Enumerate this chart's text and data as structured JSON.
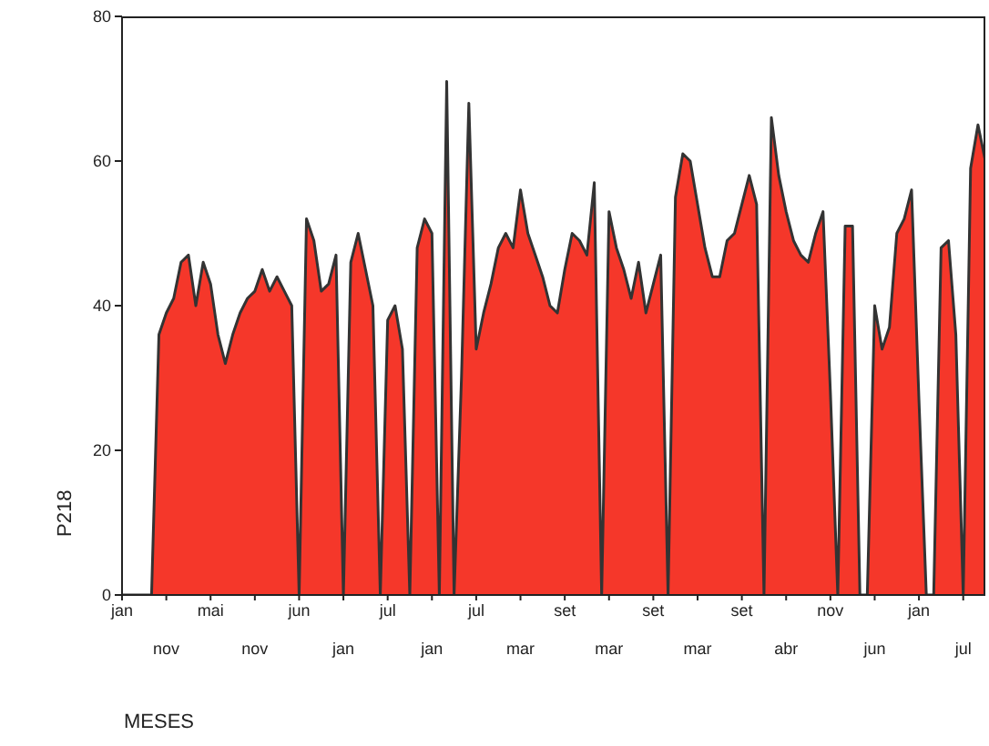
{
  "chart_data": {
    "type": "area",
    "xlabel": "MESES",
    "ylabel": "P218",
    "categories": [
      "jan",
      null,
      null,
      null,
      null,
      null,
      "nov",
      null,
      null,
      null,
      null,
      null,
      "mai",
      null,
      null,
      null,
      null,
      null,
      "nov",
      null,
      null,
      null,
      null,
      null,
      "jun",
      null,
      null,
      null,
      null,
      null,
      "jan",
      null,
      null,
      null,
      null,
      null,
      "jul",
      null,
      null,
      null,
      null,
      null,
      "jan",
      null,
      null,
      null,
      null,
      null,
      "jul",
      null,
      null,
      null,
      null,
      null,
      "mar",
      null,
      null,
      null,
      null,
      null,
      "set",
      null,
      null,
      null,
      null,
      null,
      "mar",
      null,
      null,
      null,
      null,
      null,
      "set",
      null,
      null,
      null,
      null,
      null,
      "mar",
      null,
      null,
      null,
      null,
      null,
      "set",
      null,
      null,
      null,
      null,
      null,
      "abr",
      null,
      null,
      null,
      null,
      null,
      "nov",
      null,
      null,
      null,
      null,
      null,
      "jun",
      null,
      null,
      null,
      null,
      null,
      "jan",
      null,
      null,
      null,
      null,
      null,
      "jul",
      null,
      null,
      null
    ],
    "ylim": [
      0,
      80
    ],
    "yticks": [
      0,
      20,
      40,
      60,
      80
    ],
    "grid": false,
    "legend": false,
    "series": [
      {
        "color": "#f5372a",
        "values": [
          0,
          0,
          0,
          0,
          0,
          36,
          39,
          41,
          46,
          47,
          40,
          46,
          43,
          36,
          32,
          36,
          39,
          41,
          42,
          45,
          42,
          44,
          42,
          40,
          0,
          52,
          49,
          42,
          43,
          47,
          0,
          46,
          50,
          45,
          40,
          0,
          38,
          40,
          34,
          0,
          48,
          52,
          50,
          0,
          71,
          0,
          30,
          68,
          34,
          39,
          43,
          48,
          50,
          48,
          56,
          50,
          47,
          44,
          40,
          39,
          45,
          50,
          49,
          47,
          57,
          0,
          53,
          48,
          45,
          41,
          46,
          39,
          43,
          47,
          0,
          55,
          61,
          60,
          54,
          48,
          44,
          44,
          49,
          50,
          54,
          58,
          54,
          0,
          66,
          58,
          53,
          49,
          47,
          46,
          50,
          53,
          28,
          0,
          51,
          51,
          0,
          0,
          40,
          34,
          37,
          50,
          52,
          56,
          27,
          0,
          0,
          48,
          49,
          36,
          0,
          59,
          65,
          60
        ]
      }
    ]
  }
}
